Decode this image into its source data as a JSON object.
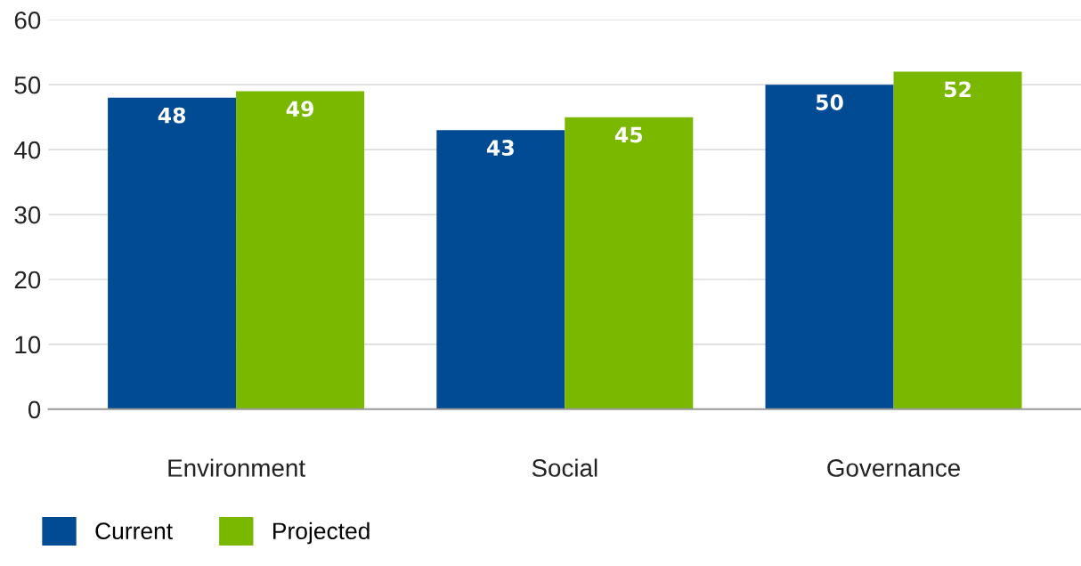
{
  "chart_data": {
    "type": "bar",
    "categories": [
      "Environment",
      "Social",
      "Governance"
    ],
    "series": [
      {
        "name": "Current",
        "color": "#004b93",
        "values": [
          48,
          43,
          50
        ]
      },
      {
        "name": "Projected",
        "color": "#7ab800",
        "values": [
          49,
          45,
          52
        ]
      }
    ],
    "ylim": [
      0,
      60
    ],
    "yticks": [
      0,
      10,
      20,
      30,
      40,
      50,
      60
    ],
    "grid": "y",
    "legend": "bottom left",
    "data_labels": true
  }
}
